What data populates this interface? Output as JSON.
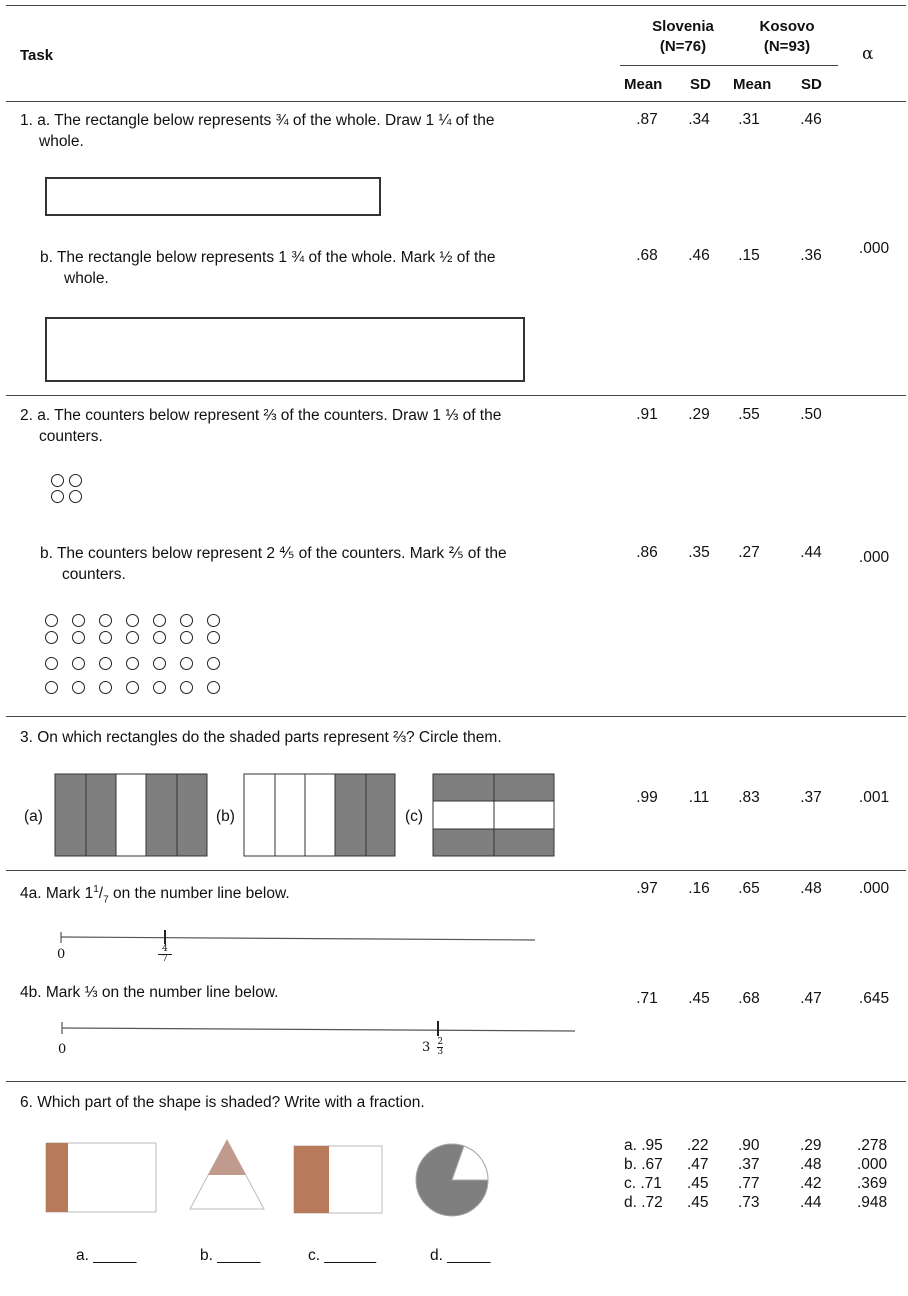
{
  "header": {
    "task_label": "Task",
    "country1": "Slovenia",
    "country1_n": "(N=76)",
    "country2": "Kosovo",
    "country2_n": "(N=93)",
    "alpha": "α",
    "mean": "Mean",
    "sd": "SD"
  },
  "tasks": {
    "t1a_line1": "1.  a. The rectangle below represents ¾ of the whole. Draw 1 ¼ of the",
    "t1a_line2": "whole.",
    "t1b_line1": "b.  The rectangle below represents 1 ¾ of the whole. Mark ½ of the",
    "t1b_line2": "whole.",
    "t2a_line1": "2.  a. The counters below represent ⅔ of the counters. Draw 1 ⅓ of the",
    "t2a_line2": "counters.",
    "t2b_line1": "b. The counters below represent 2 ⅘ of the counters. Mark ⅖ of the",
    "t2b_line2": "counters.",
    "t3": "3. On which rectangles do the shaded parts represent ⅔? Circle them.",
    "t3_a": "(a)",
    "t3_b": "(b)",
    "t3_c": "(c)",
    "t4a_prefix": "4a.  Mark 1",
    "t4a_num": "1",
    "t4a_slash": "/",
    "t4a_den": "7",
    "t4a_suffix": " on the number line below.",
    "t4a_zero": "0",
    "t4a_tick_num": "4",
    "t4a_tick_den": "7",
    "t4b": "4b.  Mark ⅓ on the number line below.",
    "t4b_zero": "0",
    "t4b_tick_whole": "3",
    "t4b_tick_num": "2",
    "t4b_tick_den": "3",
    "t6": "6.  Which part of the shape is shaded? Write with a fraction.",
    "t6_a": "a. _____",
    "t6_b": "b. _____",
    "t6_c": "c. ______",
    "t6_d": "d. _____"
  },
  "values": {
    "r1a": [
      ".87",
      ".34",
      ".31",
      ".46"
    ],
    "r1b": [
      ".68",
      ".46",
      ".15",
      ".36"
    ],
    "r1_alpha": ".000",
    "r2a": [
      ".91",
      ".29",
      ".55",
      ".50"
    ],
    "r2b": [
      ".86",
      ".35",
      ".27",
      ".44"
    ],
    "r2_alpha": ".000",
    "r3": [
      ".99",
      ".11",
      ".83",
      ".37",
      ".001"
    ],
    "r4a": [
      ".97",
      ".16",
      ".65",
      ".48",
      ".000"
    ],
    "r4b": [
      ".71",
      ".45",
      ".68",
      ".47",
      ".645"
    ],
    "r6": [
      [
        "a. .95",
        ".22",
        ".90",
        ".29",
        ".278"
      ],
      [
        "b. .67",
        ".47",
        ".37",
        ".48",
        ".000"
      ],
      [
        "c. .71",
        ".45",
        ".77",
        ".42",
        ".369"
      ],
      [
        "d. .72",
        ".45",
        ".73",
        ".44",
        ".948"
      ]
    ]
  },
  "colors": {
    "shade_gray": "#7f7f7f",
    "shade_brown": "#b97a5b",
    "shade_tri": "#c09a8c"
  }
}
